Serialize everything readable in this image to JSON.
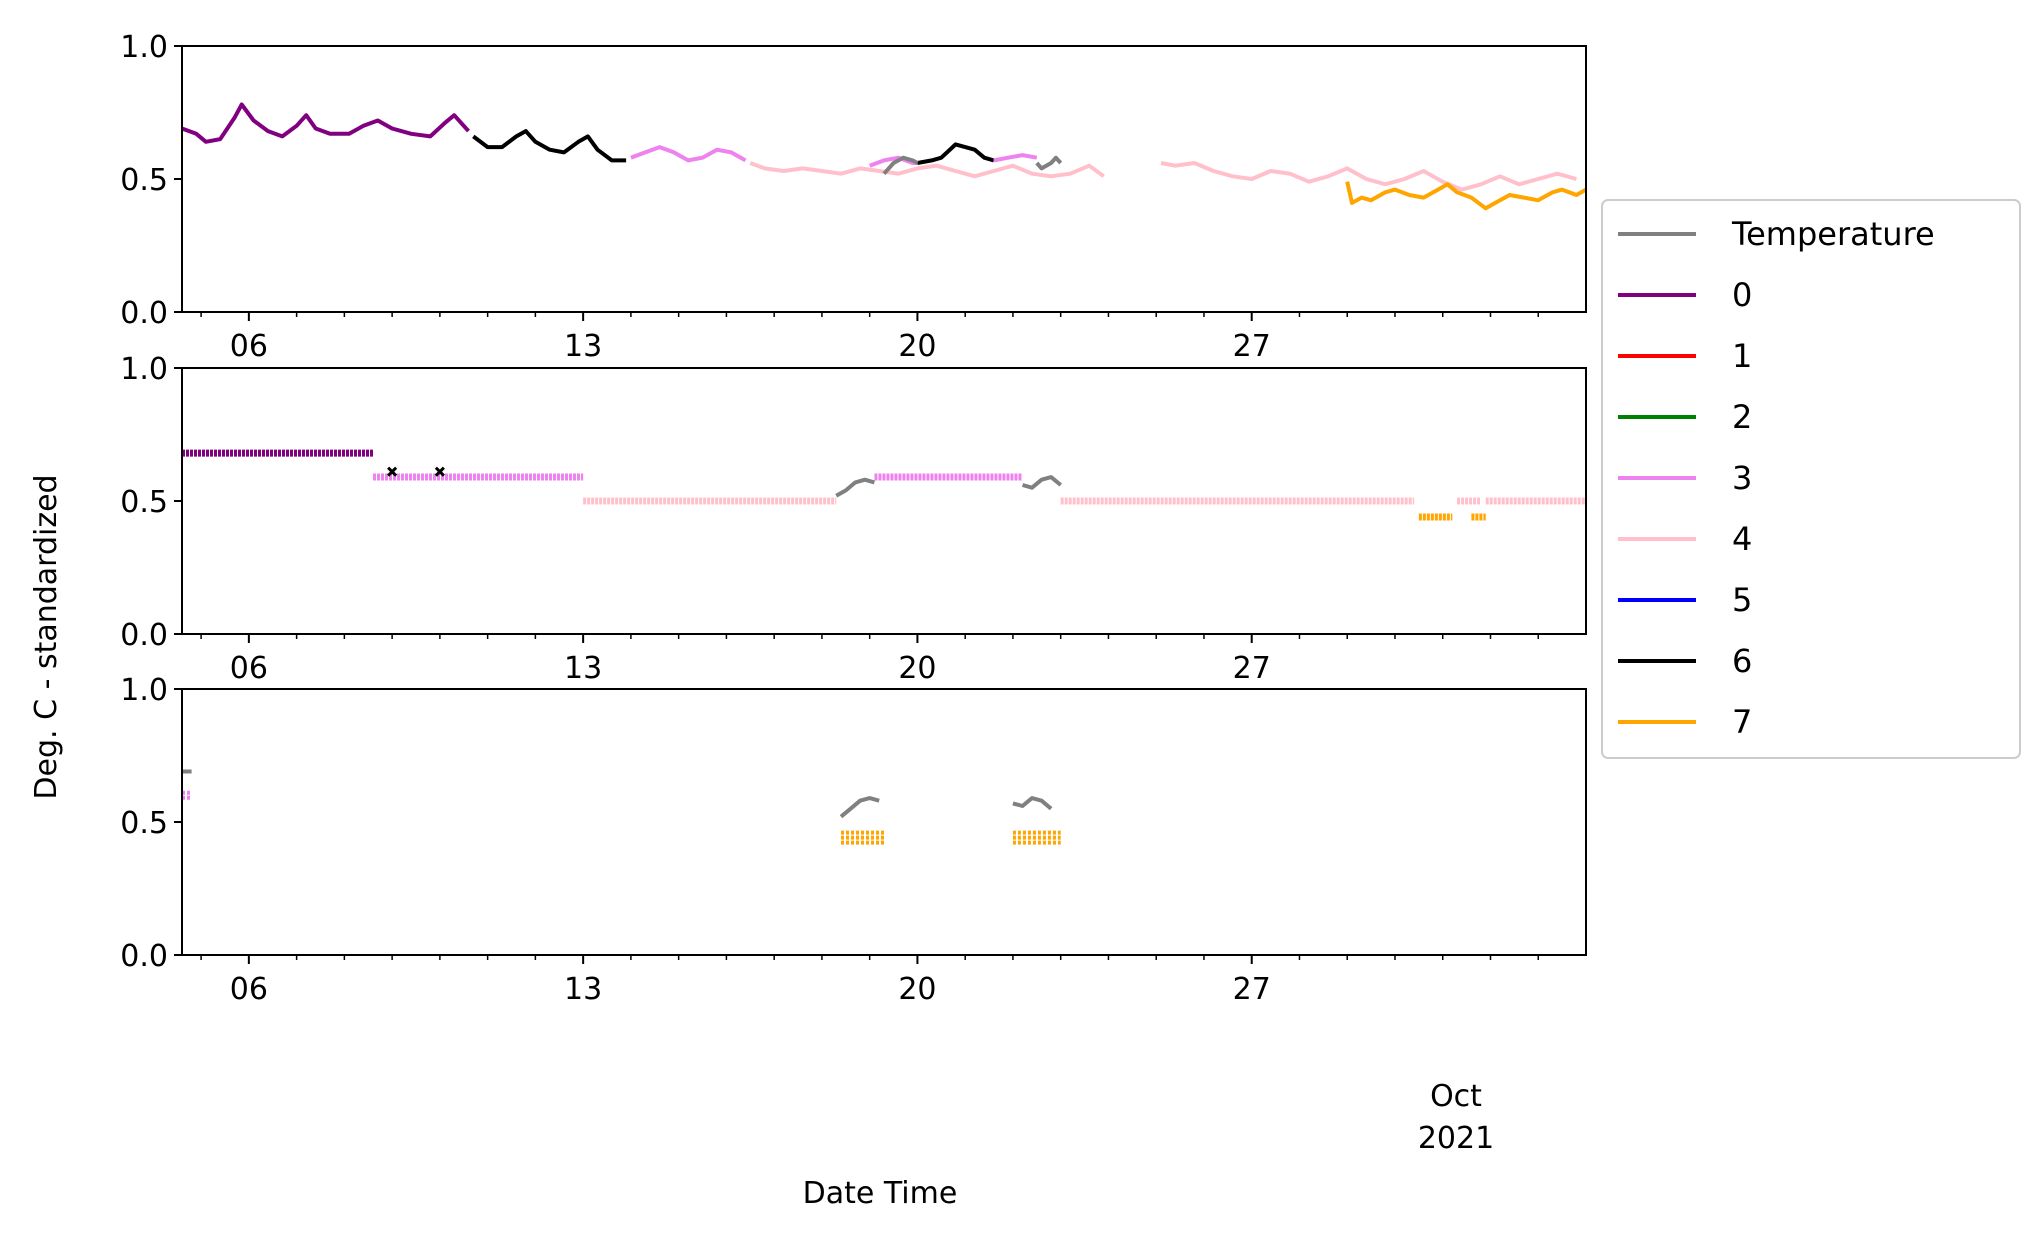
{
  "figure": {
    "ylabel": "Deg. C - standardized",
    "xlabel": "Date Time",
    "month_label": "Oct",
    "year_label": "2021"
  },
  "legend": {
    "placement": "right-outside",
    "entries": [
      {
        "label": "Temperature",
        "color": "#808080"
      },
      {
        "label": "0",
        "color": "#800080"
      },
      {
        "label": "1",
        "color": "#ff0000"
      },
      {
        "label": "2",
        "color": "#008000"
      },
      {
        "label": "3",
        "color": "#ee82ee"
      },
      {
        "label": "4",
        "color": "#ffc0cb"
      },
      {
        "label": "5",
        "color": "#0000ff"
      },
      {
        "label": "6",
        "color": "#000000"
      },
      {
        "label": "7",
        "color": "#ffa500"
      }
    ]
  },
  "axes": {
    "x_range_days": [
      4.6,
      34.0
    ],
    "major_ticks": [
      {
        "day": 6,
        "label": "06"
      },
      {
        "day": 13,
        "label": "13"
      },
      {
        "day": 20,
        "label": "20"
      },
      {
        "day": 27,
        "label": "27"
      }
    ],
    "minor_tick_days": [
      5,
      7,
      8,
      9,
      10,
      11,
      12,
      14,
      15,
      16,
      17,
      18,
      19,
      21,
      22,
      23,
      24,
      25,
      26,
      28,
      29,
      30,
      31,
      32,
      33
    ],
    "y_ticks": [
      {
        "v": 0.0,
        "label": "0.0"
      },
      {
        "v": 0.5,
        "label": "0.5"
      },
      {
        "v": 1.0,
        "label": "1.0"
      }
    ],
    "ylim": [
      0,
      1
    ]
  },
  "chart_data": [
    {
      "type": "line",
      "xunit": "day of month (September 2021; 31 = Oct 1)",
      "ylim": [
        0,
        1
      ],
      "series": [
        {
          "name": "0",
          "color": "#800080",
          "segments": [
            [
              [
                4.6,
                0.69
              ],
              [
                4.9,
                0.67
              ],
              [
                5.1,
                0.64
              ],
              [
                5.4,
                0.65
              ],
              [
                5.7,
                0.73
              ],
              [
                5.85,
                0.78
              ],
              [
                6.1,
                0.72
              ],
              [
                6.4,
                0.68
              ],
              [
                6.7,
                0.66
              ],
              [
                7.0,
                0.7
              ],
              [
                7.2,
                0.74
              ],
              [
                7.4,
                0.69
              ],
              [
                7.7,
                0.67
              ],
              [
                8.1,
                0.67
              ],
              [
                8.4,
                0.7
              ],
              [
                8.7,
                0.72
              ],
              [
                9.0,
                0.69
              ],
              [
                9.4,
                0.67
              ],
              [
                9.8,
                0.66
              ],
              [
                10.1,
                0.71
              ],
              [
                10.3,
                0.74
              ],
              [
                10.6,
                0.68
              ]
            ]
          ]
        },
        {
          "name": "6",
          "color": "#000000",
          "segments": [
            [
              [
                10.7,
                0.66
              ],
              [
                11.0,
                0.62
              ],
              [
                11.3,
                0.62
              ],
              [
                11.6,
                0.66
              ],
              [
                11.8,
                0.68
              ],
              [
                12.0,
                0.64
              ],
              [
                12.3,
                0.61
              ],
              [
                12.6,
                0.6
              ],
              [
                12.9,
                0.64
              ],
              [
                13.1,
                0.66
              ],
              [
                13.3,
                0.61
              ],
              [
                13.6,
                0.57
              ],
              [
                13.9,
                0.57
              ]
            ],
            [
              [
                20.0,
                0.56
              ],
              [
                20.3,
                0.57
              ],
              [
                20.5,
                0.58
              ],
              [
                20.8,
                0.63
              ],
              [
                21.0,
                0.62
              ],
              [
                21.2,
                0.61
              ],
              [
                21.4,
                0.58
              ],
              [
                21.6,
                0.57
              ]
            ]
          ]
        },
        {
          "name": "3",
          "color": "#ee82ee",
          "segments": [
            [
              [
                14.0,
                0.58
              ],
              [
                14.3,
                0.6
              ],
              [
                14.6,
                0.62
              ],
              [
                14.9,
                0.6
              ],
              [
                15.2,
                0.57
              ],
              [
                15.5,
                0.58
              ],
              [
                15.8,
                0.61
              ],
              [
                16.1,
                0.6
              ],
              [
                16.4,
                0.57
              ]
            ],
            [
              [
                19.0,
                0.55
              ],
              [
                19.3,
                0.57
              ],
              [
                19.6,
                0.58
              ],
              [
                19.9,
                0.56
              ],
              [
                20.0,
                0.56
              ]
            ],
            [
              [
                21.6,
                0.57
              ],
              [
                21.9,
                0.58
              ],
              [
                22.2,
                0.59
              ],
              [
                22.5,
                0.58
              ]
            ]
          ]
        },
        {
          "name": "4",
          "color": "#ffc0cb",
          "segments": [
            [
              [
                16.5,
                0.56
              ],
              [
                16.8,
                0.54
              ],
              [
                17.2,
                0.53
              ],
              [
                17.6,
                0.54
              ],
              [
                18.0,
                0.53
              ],
              [
                18.4,
                0.52
              ],
              [
                18.8,
                0.54
              ],
              [
                19.2,
                0.53
              ],
              [
                19.6,
                0.52
              ],
              [
                20.0,
                0.54
              ],
              [
                20.4,
                0.55
              ],
              [
                20.8,
                0.53
              ],
              [
                21.2,
                0.51
              ],
              [
                21.6,
                0.53
              ],
              [
                22.0,
                0.55
              ],
              [
                22.4,
                0.52
              ],
              [
                22.8,
                0.51
              ],
              [
                23.2,
                0.52
              ],
              [
                23.6,
                0.55
              ],
              [
                23.9,
                0.51
              ]
            ],
            [
              [
                25.1,
                0.56
              ],
              [
                25.4,
                0.55
              ],
              [
                25.8,
                0.56
              ],
              [
                26.2,
                0.53
              ],
              [
                26.6,
                0.51
              ],
              [
                27.0,
                0.5
              ],
              [
                27.4,
                0.53
              ],
              [
                27.8,
                0.52
              ],
              [
                28.2,
                0.49
              ],
              [
                28.6,
                0.51
              ],
              [
                29.0,
                0.54
              ],
              [
                29.4,
                0.5
              ],
              [
                29.8,
                0.48
              ],
              [
                30.2,
                0.5
              ],
              [
                30.6,
                0.53
              ],
              [
                31.0,
                0.49
              ],
              [
                31.4,
                0.46
              ],
              [
                31.8,
                0.48
              ],
              [
                32.2,
                0.51
              ],
              [
                32.6,
                0.48
              ],
              [
                33.0,
                0.5
              ],
              [
                33.4,
                0.52
              ],
              [
                33.8,
                0.5
              ]
            ]
          ]
        },
        {
          "name": "Temperature",
          "color": "#808080",
          "segments": [
            [
              [
                19.3,
                0.52
              ],
              [
                19.5,
                0.56
              ],
              [
                19.7,
                0.58
              ],
              [
                19.9,
                0.57
              ],
              [
                20.0,
                0.56
              ]
            ],
            [
              [
                22.5,
                0.56
              ],
              [
                22.6,
                0.54
              ],
              [
                22.8,
                0.56
              ],
              [
                22.9,
                0.58
              ],
              [
                23.0,
                0.56
              ]
            ]
          ]
        },
        {
          "name": "7",
          "color": "#ffa500",
          "segments": [
            [
              [
                29.0,
                0.49
              ],
              [
                29.1,
                0.41
              ],
              [
                29.3,
                0.43
              ],
              [
                29.5,
                0.42
              ],
              [
                29.8,
                0.45
              ],
              [
                30.0,
                0.46
              ],
              [
                30.3,
                0.44
              ],
              [
                30.6,
                0.43
              ],
              [
                30.9,
                0.46
              ],
              [
                31.1,
                0.48
              ],
              [
                31.3,
                0.45
              ],
              [
                31.6,
                0.43
              ],
              [
                31.9,
                0.39
              ],
              [
                32.1,
                0.41
              ],
              [
                32.4,
                0.44
              ],
              [
                32.7,
                0.43
              ],
              [
                33.0,
                0.42
              ],
              [
                33.3,
                0.45
              ],
              [
                33.5,
                0.46
              ],
              [
                33.8,
                0.44
              ],
              [
                34.0,
                0.46
              ]
            ]
          ]
        }
      ]
    },
    {
      "type": "scatter",
      "xunit": "day of month (September 2021; 31 = Oct 1)",
      "ylim": [
        0,
        1
      ],
      "segments": [
        {
          "name": "0",
          "color": "#800080",
          "kind": "level",
          "x0": 4.6,
          "x1": 8.6,
          "y": 0.68
        },
        {
          "name": "3",
          "color": "#ee82ee",
          "kind": "level",
          "x0": 8.6,
          "x1": 13.0,
          "y": 0.59
        },
        {
          "name": "4",
          "color": "#ffc0cb",
          "kind": "level",
          "x0": 13.0,
          "x1": 18.3,
          "y": 0.5
        },
        {
          "name": "Temperature",
          "color": "#808080",
          "kind": "line",
          "points": [
            [
              18.3,
              0.52
            ],
            [
              18.5,
              0.54
            ],
            [
              18.7,
              0.57
            ],
            [
              18.9,
              0.58
            ],
            [
              19.1,
              0.57
            ]
          ]
        },
        {
          "name": "3",
          "color": "#ee82ee",
          "kind": "level",
          "x0": 19.1,
          "x1": 22.2,
          "y": 0.59
        },
        {
          "name": "Temperature",
          "color": "#808080",
          "kind": "line",
          "points": [
            [
              22.2,
              0.56
            ],
            [
              22.4,
              0.55
            ],
            [
              22.6,
              0.58
            ],
            [
              22.8,
              0.59
            ],
            [
              23.0,
              0.56
            ]
          ]
        },
        {
          "name": "4",
          "color": "#ffc0cb",
          "kind": "level",
          "x0": 23.0,
          "x1": 30.4,
          "y": 0.5
        },
        {
          "name": "7",
          "color": "#ffa500",
          "kind": "level",
          "x0": 30.5,
          "x1": 31.2,
          "y": 0.44
        },
        {
          "name": "4",
          "color": "#ffc0cb",
          "kind": "level",
          "x0": 31.3,
          "x1": 31.8,
          "y": 0.5
        },
        {
          "name": "7",
          "color": "#ffa500",
          "kind": "level",
          "x0": 31.6,
          "x1": 31.9,
          "y": 0.44
        },
        {
          "name": "4",
          "color": "#ffc0cb",
          "kind": "level",
          "x0": 31.9,
          "x1": 34.0,
          "y": 0.5
        },
        {
          "name": "6",
          "color": "#000000",
          "kind": "point",
          "x": 9.0,
          "y": 0.61
        },
        {
          "name": "6",
          "color": "#000000",
          "kind": "point",
          "x": 10.0,
          "y": 0.61
        }
      ]
    },
    {
      "type": "scatter",
      "xunit": "day of month (September 2021; 31 = Oct 1)",
      "ylim": [
        0,
        1
      ],
      "segments": [
        {
          "name": "Temperature",
          "color": "#808080",
          "kind": "line",
          "points": [
            [
              4.6,
              0.69
            ],
            [
              4.8,
              0.69
            ]
          ]
        },
        {
          "name": "3",
          "color": "#ee82ee",
          "kind": "band",
          "x0": 4.6,
          "x1": 4.8,
          "y": [
            0.58,
            0.61
          ]
        },
        {
          "name": "Temperature",
          "color": "#808080",
          "kind": "line",
          "points": [
            [
              18.4,
              0.52
            ],
            [
              18.6,
              0.55
            ],
            [
              18.8,
              0.58
            ],
            [
              19.0,
              0.59
            ],
            [
              19.2,
              0.58
            ]
          ]
        },
        {
          "name": "7",
          "color": "#ffa500",
          "kind": "band",
          "x0": 18.4,
          "x1": 19.3,
          "y": [
            0.42,
            0.46
          ]
        },
        {
          "name": "Temperature",
          "color": "#808080",
          "kind": "line",
          "points": [
            [
              22.0,
              0.57
            ],
            [
              22.2,
              0.56
            ],
            [
              22.4,
              0.59
            ],
            [
              22.6,
              0.58
            ],
            [
              22.8,
              0.55
            ]
          ]
        },
        {
          "name": "7",
          "color": "#ffa500",
          "kind": "band",
          "x0": 22.0,
          "x1": 23.0,
          "y": [
            0.42,
            0.46
          ]
        }
      ]
    }
  ]
}
